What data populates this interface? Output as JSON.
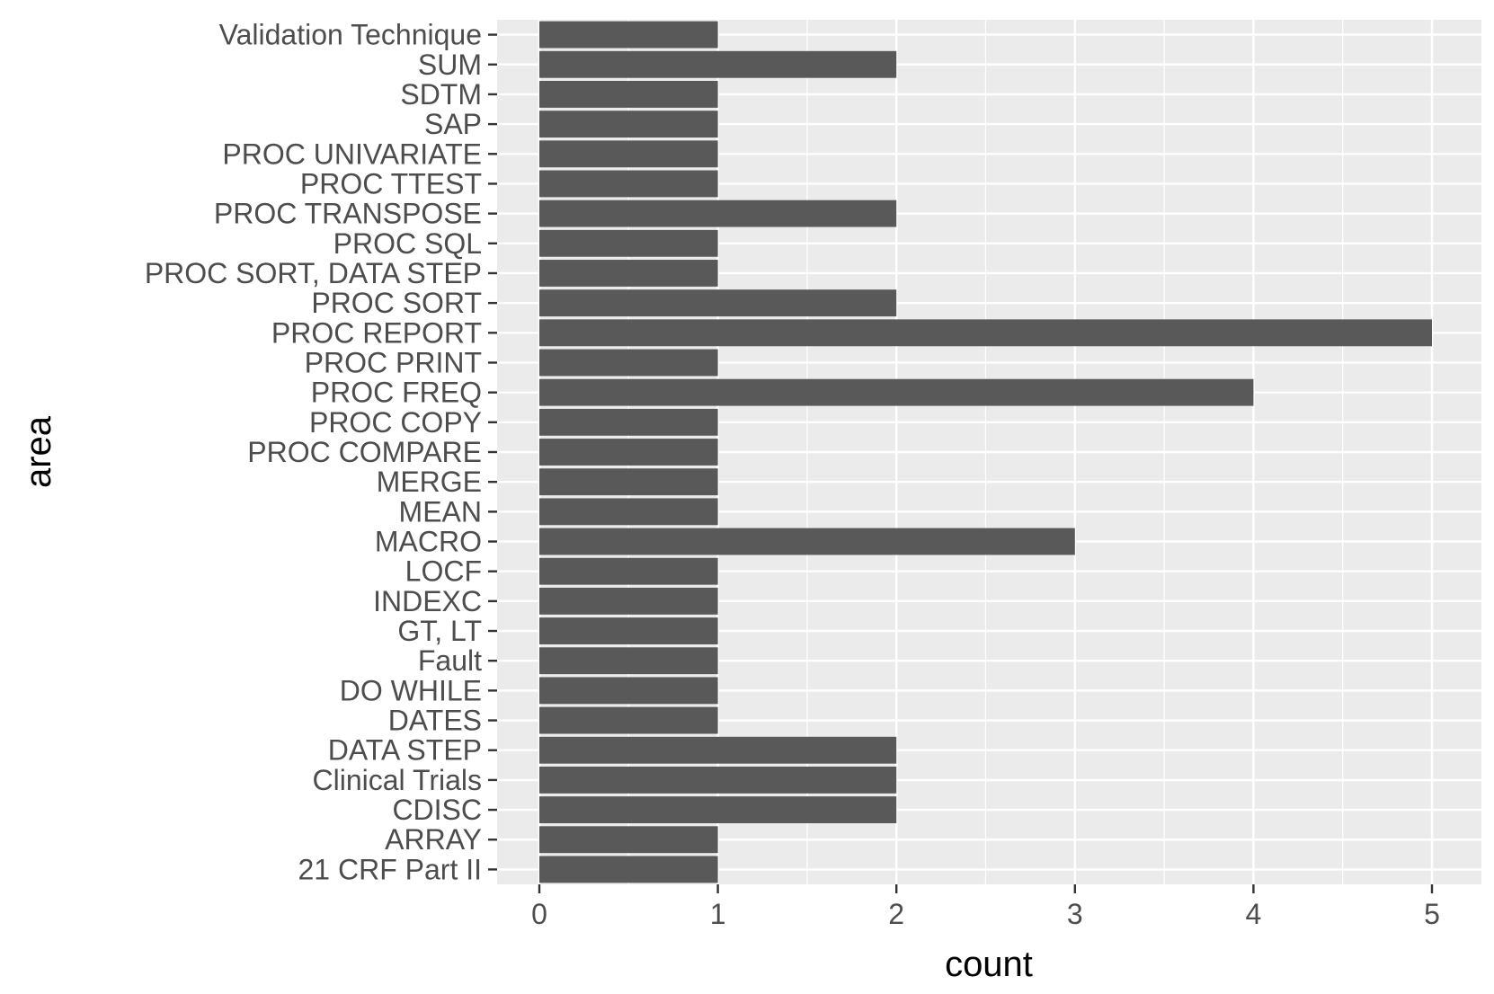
{
  "chart_data": {
    "type": "bar",
    "orientation": "horizontal",
    "title": "",
    "xlabel": "count",
    "ylabel": "area",
    "xlim": [
      0,
      5
    ],
    "x_ticks": [
      0,
      1,
      2,
      3,
      4,
      5
    ],
    "grid": true,
    "colors": {
      "bar": "#595959",
      "panel_background": "#ebebeb",
      "grid": "#ffffff",
      "tick_text": "#4d4d4d",
      "axis_title": "#000000"
    },
    "categories": [
      "21 CRF Part II",
      "ARRAY",
      "CDISC",
      "Clinical Trials",
      "DATA STEP",
      "DATES",
      "DO WHILE",
      "Fault",
      "GT, LT",
      "INDEXC",
      "LOCF",
      "MACRO",
      "MEAN",
      "MERGE",
      "PROC COMPARE",
      "PROC COPY",
      "PROC FREQ",
      "PROC PRINT",
      "PROC REPORT",
      "PROC SORT",
      "PROC SORT, DATA STEP",
      "PROC SQL",
      "PROC TRANSPOSE",
      "PROC TTEST",
      "PROC UNIVARIATE",
      "SAP",
      "SDTM",
      "SUM",
      "Validation Technique"
    ],
    "values": [
      1,
      1,
      2,
      2,
      2,
      1,
      1,
      1,
      1,
      1,
      1,
      3,
      1,
      1,
      1,
      1,
      4,
      1,
      5,
      2,
      1,
      1,
      2,
      1,
      1,
      1,
      1,
      2,
      1
    ]
  }
}
